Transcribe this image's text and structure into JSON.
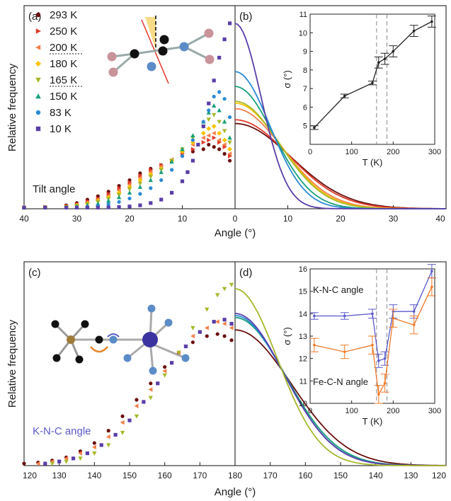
{
  "figure": {
    "panel_labels": [
      "(a)",
      "(b)",
      "(c)",
      "(d)"
    ],
    "ylabel": "Relative frequency",
    "xlabel": "Angle (°)",
    "top_annotation": "Tilt angle",
    "bottom_annotation": "K-N-C angle",
    "inset_b_ylabel": "σ (°)",
    "inset_xlabel": "T (K)",
    "inset_d_series": [
      "K-N-C angle",
      "Fe-C-N angle"
    ]
  },
  "legend": [
    {
      "label": "293 K",
      "color": "#6b0f0f",
      "marker": "circle",
      "underline": false
    },
    {
      "label": "250 K",
      "color": "#e03a2a",
      "marker": "triangle-right",
      "underline": false
    },
    {
      "label": "200 K",
      "color": "#f4804a",
      "marker": "triangle-left",
      "underline": true
    },
    {
      "label": "180 K",
      "color": "#f5c400",
      "marker": "diamond",
      "underline": false
    },
    {
      "label": "165 K",
      "color": "#a8b82a",
      "marker": "triangle-down",
      "underline": true
    },
    {
      "label": "150 K",
      "color": "#18a07a",
      "marker": "triangle-up",
      "underline": false
    },
    {
      "label": "83 K",
      "color": "#2a8ad4",
      "marker": "circle",
      "underline": false
    },
    {
      "label": "10 K",
      "color": "#5a3ea8",
      "marker": "square",
      "underline": false
    }
  ],
  "chart_data": [
    {
      "id": "a",
      "type": "scatter",
      "xlabel": "Angle (°)",
      "ylabel": "Relative frequency",
      "xlim": [
        40,
        0
      ],
      "x_ticks": [
        40,
        30,
        20,
        10
      ],
      "annotation": "Tilt angle",
      "series": [
        {
          "name": "293 K",
          "color": "#6b0f0f",
          "marker": "circle",
          "x": [
            40,
            36,
            32,
            30,
            28,
            26,
            24,
            22,
            20,
            18,
            16,
            14,
            12,
            10,
            8,
            6,
            5,
            4,
            3,
            2,
            1
          ],
          "y": [
            0.01,
            0.015,
            0.03,
            0.05,
            0.08,
            0.11,
            0.15,
            0.2,
            0.25,
            0.31,
            0.35,
            0.38,
            0.42,
            0.46,
            0.5,
            0.52,
            0.56,
            0.54,
            0.52,
            0.48,
            0.42
          ]
        },
        {
          "name": "250 K",
          "color": "#e03a2a",
          "marker": "triangle-right",
          "x": [
            40,
            36,
            32,
            30,
            28,
            26,
            24,
            22,
            20,
            18,
            16,
            14,
            12,
            10,
            8,
            6,
            5,
            4,
            3,
            2,
            1
          ],
          "y": [
            0.01,
            0.014,
            0.025,
            0.04,
            0.065,
            0.09,
            0.13,
            0.18,
            0.23,
            0.29,
            0.34,
            0.38,
            0.42,
            0.48,
            0.52,
            0.58,
            0.6,
            0.62,
            0.58,
            0.54,
            0.46
          ]
        },
        {
          "name": "200 K",
          "color": "#f4804a",
          "marker": "triangle-left",
          "x": [
            40,
            36,
            32,
            30,
            28,
            26,
            24,
            22,
            20,
            18,
            16,
            14,
            12,
            10,
            8,
            6,
            5,
            4,
            3,
            2,
            1
          ],
          "y": [
            0.01,
            0.012,
            0.02,
            0.035,
            0.055,
            0.08,
            0.11,
            0.16,
            0.21,
            0.27,
            0.32,
            0.37,
            0.43,
            0.5,
            0.56,
            0.62,
            0.64,
            0.66,
            0.6,
            0.56,
            0.48
          ]
        },
        {
          "name": "180 K",
          "color": "#f5c400",
          "marker": "diamond",
          "x": [
            40,
            36,
            32,
            30,
            28,
            26,
            24,
            22,
            20,
            18,
            16,
            14,
            12,
            10,
            8,
            6,
            5,
            4,
            3,
            2,
            1
          ],
          "y": [
            0.01,
            0.011,
            0.018,
            0.03,
            0.045,
            0.07,
            0.1,
            0.14,
            0.19,
            0.25,
            0.3,
            0.35,
            0.42,
            0.5,
            0.58,
            0.66,
            0.7,
            0.72,
            0.66,
            0.6,
            0.52
          ]
        },
        {
          "name": "165 K",
          "color": "#a8b82a",
          "marker": "triangle-down",
          "x": [
            40,
            36,
            32,
            30,
            28,
            26,
            24,
            22,
            20,
            18,
            16,
            14,
            12,
            10,
            8,
            6,
            5,
            4,
            3,
            2,
            1
          ],
          "y": [
            0.01,
            0.01,
            0.015,
            0.025,
            0.04,
            0.06,
            0.085,
            0.12,
            0.17,
            0.22,
            0.28,
            0.34,
            0.42,
            0.52,
            0.62,
            0.72,
            0.78,
            0.82,
            0.76,
            0.68,
            0.58
          ]
        },
        {
          "name": "150 K",
          "color": "#18a07a",
          "marker": "triangle-up",
          "x": [
            40,
            36,
            32,
            30,
            28,
            26,
            24,
            22,
            20,
            18,
            16,
            14,
            12,
            10,
            8,
            6,
            5,
            4,
            3,
            2,
            1
          ],
          "y": [
            0.01,
            0.01,
            0.012,
            0.02,
            0.03,
            0.045,
            0.07,
            0.1,
            0.14,
            0.19,
            0.25,
            0.32,
            0.41,
            0.52,
            0.64,
            0.76,
            0.84,
            0.9,
            0.86,
            0.76,
            0.62
          ]
        },
        {
          "name": "83 K",
          "color": "#2a8ad4",
          "marker": "circle",
          "x": [
            40,
            36,
            32,
            30,
            28,
            26,
            24,
            22,
            20,
            18,
            16,
            14,
            12,
            10,
            8,
            6,
            5,
            4,
            3,
            2,
            1
          ],
          "y": [
            0.01,
            0.01,
            0.01,
            0.012,
            0.018,
            0.025,
            0.04,
            0.06,
            0.09,
            0.13,
            0.18,
            0.25,
            0.34,
            0.46,
            0.6,
            0.76,
            0.86,
            0.98,
            1.02,
            0.96,
            0.8
          ]
        },
        {
          "name": "10 K",
          "color": "#5a3ea8",
          "marker": "square",
          "x": [
            40,
            36,
            32,
            30,
            28,
            26,
            24,
            22,
            20,
            18,
            16,
            14,
            12,
            10,
            9,
            8,
            7,
            6,
            5,
            4,
            3,
            2,
            1
          ],
          "y": [
            0.01,
            0.01,
            0.01,
            0.01,
            0.01,
            0.01,
            0.012,
            0.015,
            0.02,
            0.03,
            0.05,
            0.08,
            0.14,
            0.24,
            0.32,
            0.42,
            0.56,
            0.72,
            0.92,
            1.12,
            1.32,
            1.48,
            1.62
          ]
        }
      ]
    },
    {
      "id": "b",
      "type": "line",
      "xlabel": "Angle (°)",
      "xlim": [
        0,
        40
      ],
      "x_ticks": [
        0,
        10,
        20,
        30,
        40
      ],
      "series": [
        {
          "name": "293 K",
          "color": "#6b0f0f",
          "sigma": 10.6,
          "peak": 0.46
        },
        {
          "name": "250 K",
          "color": "#e03a2a",
          "sigma": 10.1,
          "peak": 0.48
        },
        {
          "name": "200 K",
          "color": "#f4804a",
          "sigma": 9.0,
          "peak": 0.54
        },
        {
          "name": "180 K",
          "color": "#f5c400",
          "sigma": 8.6,
          "peak": 0.57
        },
        {
          "name": "165 K",
          "color": "#a8b82a",
          "sigma": 8.4,
          "peak": 0.58
        },
        {
          "name": "150 K",
          "color": "#18a07a",
          "sigma": 7.3,
          "peak": 0.66
        },
        {
          "name": "83 K",
          "color": "#2a8ad4",
          "sigma": 6.6,
          "peak": 0.74
        },
        {
          "name": "10 K",
          "color": "#5a3ea8",
          "sigma": 4.9,
          "peak": 1.0
        }
      ]
    },
    {
      "id": "b-inset",
      "type": "line",
      "xlabel": "T (K)",
      "ylabel": "σ (°)",
      "xlim": [
        0,
        300
      ],
      "ylim": [
        4,
        11
      ],
      "x_ticks": [
        0,
        100,
        200,
        300
      ],
      "y_ticks": [
        5,
        6,
        7,
        8,
        9,
        10,
        11
      ],
      "dashed_x": [
        160,
        185
      ],
      "x": [
        10,
        83,
        150,
        165,
        180,
        200,
        250,
        293
      ],
      "y": [
        4.9,
        6.6,
        7.3,
        8.4,
        8.6,
        9.0,
        10.1,
        10.6
      ],
      "err": [
        0.1,
        0.1,
        0.1,
        0.3,
        0.3,
        0.3,
        0.3,
        0.3
      ]
    },
    {
      "id": "c",
      "type": "scatter",
      "xlabel": "Angle (°)",
      "ylabel": "Relative frequency",
      "xlim": [
        120,
        180
      ],
      "x_ticks": [
        120,
        130,
        140,
        150,
        160,
        170
      ],
      "annotation": "K-N-C angle",
      "series": [
        {
          "name": "293 K",
          "color": "#6b0f0f",
          "marker": "circle",
          "x": [
            120,
            124,
            128,
            132,
            136,
            140,
            144,
            148,
            152,
            156,
            160,
            164,
            168,
            172,
            175,
            177,
            179
          ],
          "y": [
            0.01,
            0.015,
            0.025,
            0.04,
            0.07,
            0.11,
            0.17,
            0.24,
            0.32,
            0.4,
            0.48,
            0.55,
            0.6,
            0.63,
            0.64,
            0.63,
            0.61
          ]
        },
        {
          "name": "200 K",
          "color": "#f4804a",
          "marker": "triangle-left",
          "x": [
            124,
            128,
            132,
            136,
            140,
            144,
            148,
            152,
            156,
            160,
            164,
            168,
            172,
            175,
            177,
            179
          ],
          "y": [
            0.01,
            0.02,
            0.035,
            0.06,
            0.09,
            0.14,
            0.21,
            0.29,
            0.37,
            0.46,
            0.55,
            0.63,
            0.67,
            0.7,
            0.69,
            0.67
          ]
        },
        {
          "name": "165 K",
          "color": "#a8b82a",
          "marker": "triangle-down",
          "x": [
            128,
            132,
            136,
            140,
            144,
            148,
            152,
            156,
            160,
            164,
            168,
            172,
            175,
            177,
            179
          ],
          "y": [
            0.01,
            0.02,
            0.035,
            0.06,
            0.1,
            0.16,
            0.24,
            0.33,
            0.44,
            0.55,
            0.67,
            0.76,
            0.83,
            0.86,
            0.88
          ]
        },
        {
          "name": "10 K",
          "color": "#5a3ea8",
          "marker": "square",
          "x": [
            126,
            130,
            134,
            138,
            142,
            146,
            150,
            154,
            158,
            162,
            166,
            170,
            174,
            177,
            179
          ],
          "y": [
            0.01,
            0.02,
            0.035,
            0.06,
            0.1,
            0.15,
            0.22,
            0.31,
            0.4,
            0.5,
            0.58,
            0.65,
            0.7,
            0.71,
            0.69
          ]
        }
      ]
    },
    {
      "id": "d",
      "type": "line",
      "xlabel": "Angle (°)",
      "xlim": [
        180,
        120
      ],
      "x_ticks": [
        180,
        170,
        160,
        150,
        140,
        130,
        120
      ],
      "series": [
        {
          "name": "293 K",
          "color": "#6b0f0f",
          "sigma": 15.9,
          "peak": 0.66
        },
        {
          "name": "150 K",
          "color": "#18a07a",
          "sigma": 14.4,
          "peak": 0.72
        },
        {
          "name": "83 K",
          "color": "#2a8ad4",
          "sigma": 14.0,
          "peak": 0.73
        },
        {
          "name": "10 K",
          "color": "#5a3ea8",
          "sigma": 13.9,
          "peak": 0.74
        },
        {
          "name": "165 K",
          "color": "#a8b82a",
          "sigma": 12.0,
          "peak": 0.86
        }
      ]
    },
    {
      "id": "d-inset",
      "type": "line",
      "xlabel": "T (K)",
      "ylabel": "σ (°)",
      "xlim": [
        0,
        300
      ],
      "ylim": [
        10,
        16
      ],
      "x_ticks": [
        0,
        100,
        200,
        300
      ],
      "y_ticks": [
        10,
        11,
        12,
        13,
        14,
        15,
        16
      ],
      "dashed_x": [
        160,
        185
      ],
      "series": [
        {
          "name": "K-N-C angle",
          "color": "#5a5ac8",
          "x": [
            10,
            83,
            150,
            165,
            180,
            200,
            250,
            293
          ],
          "y": [
            13.9,
            13.9,
            14.0,
            11.9,
            12.0,
            14.1,
            14.1,
            15.9
          ],
          "err": [
            0.15,
            0.15,
            0.2,
            0.3,
            0.3,
            0.3,
            0.3,
            0.3
          ]
        },
        {
          "name": "Fe-C-N angle",
          "color": "#ee7a2a",
          "x": [
            10,
            83,
            150,
            165,
            180,
            200,
            250,
            293
          ],
          "y": [
            12.6,
            12.3,
            12.6,
            10.4,
            10.9,
            13.8,
            13.5,
            15.2
          ],
          "err": [
            0.3,
            0.3,
            0.4,
            0.4,
            0.4,
            0.4,
            0.4,
            0.4
          ]
        }
      ]
    }
  ]
}
